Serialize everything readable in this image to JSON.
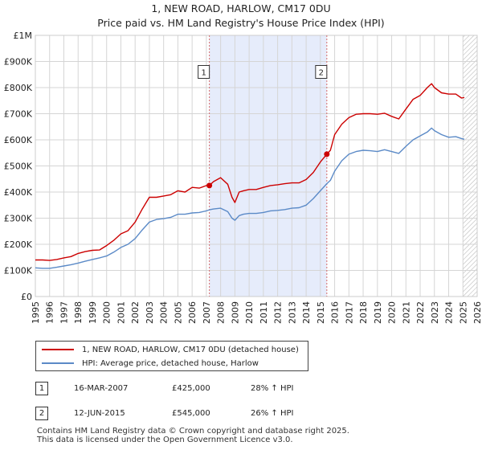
{
  "header": {
    "title_line1": "1, NEW ROAD, HARLOW, CM17 0DU",
    "title_line2": "Price paid vs. HM Land Registry's House Price Index (HPI)"
  },
  "colors": {
    "price_paid": "#cc0000",
    "hpi": "#5b8ac7",
    "shade": "#e6ecfb",
    "grid": "#d5d5d5",
    "marker_line": "#d46a6a"
  },
  "legend": {
    "items": [
      {
        "label": "1, NEW ROAD, HARLOW, CM17 0DU (detached house)",
        "color": "#cc0000"
      },
      {
        "label": "HPI: Average price, detached house, Harlow",
        "color": "#5b8ac7"
      }
    ]
  },
  "transactions": [
    {
      "id": "1",
      "date": "16-MAR-2007",
      "price": "£425,000",
      "hpi_change": "28% ↑ HPI"
    },
    {
      "id": "2",
      "date": "12-JUN-2015",
      "price": "£545,000",
      "hpi_change": "26% ↑ HPI"
    }
  ],
  "footer": {
    "line1": "Contains HM Land Registry data © Crown copyright and database right 2025.",
    "line2": "This data is licensed under the Open Government Licence v3.0."
  },
  "chart_data": {
    "type": "line",
    "title": "1, NEW ROAD, HARLOW, CM17 0DU",
    "subtitle": "Price paid vs. HM Land Registry's House Price Index (HPI)",
    "xlabel": "",
    "ylabel": "",
    "xlim": [
      1995,
      2026
    ],
    "ylim": [
      0,
      1000000
    ],
    "grid": true,
    "legend_position": "below",
    "x_ticks": [
      1995,
      1996,
      1997,
      1998,
      1999,
      2000,
      2001,
      2002,
      2003,
      2004,
      2005,
      2006,
      2007,
      2008,
      2009,
      2010,
      2011,
      2012,
      2013,
      2014,
      2015,
      2016,
      2017,
      2018,
      2019,
      2020,
      2021,
      2022,
      2023,
      2024,
      2025,
      2026
    ],
    "y_ticks": [
      {
        "value": 0,
        "label": "£0"
      },
      {
        "value": 100000,
        "label": "£100K"
      },
      {
        "value": 200000,
        "label": "£200K"
      },
      {
        "value": 300000,
        "label": "£300K"
      },
      {
        "value": 400000,
        "label": "£400K"
      },
      {
        "value": 500000,
        "label": "£500K"
      },
      {
        "value": 600000,
        "label": "£600K"
      },
      {
        "value": 700000,
        "label": "£700K"
      },
      {
        "value": 800000,
        "label": "£800K"
      },
      {
        "value": 900000,
        "label": "£900K"
      },
      {
        "value": 1000000,
        "label": "£1M"
      }
    ],
    "shaded_ranges": [
      {
        "from": 2007.21,
        "to": 2015.45,
        "kind": "ownership_period"
      },
      {
        "from": 2025.0,
        "to": 2026.0,
        "kind": "projection_hatched"
      }
    ],
    "markers": [
      {
        "id": "1",
        "x": 2007.21,
        "y": 425000,
        "label_y": 860000
      },
      {
        "id": "2",
        "x": 2015.45,
        "y": 545000,
        "label_y": 860000
      }
    ],
    "series": [
      {
        "name": "1, NEW ROAD, HARLOW, CM17 0DU (detached house)",
        "color": "#cc0000",
        "x": [
          1995.0,
          1995.5,
          1996.0,
          1996.5,
          1997.0,
          1997.5,
          1998.0,
          1998.5,
          1999.0,
          1999.5,
          2000.0,
          2000.5,
          2001.0,
          2001.5,
          2002.0,
          2002.5,
          2003.0,
          2003.5,
          2004.0,
          2004.5,
          2005.0,
          2005.5,
          2006.0,
          2006.5,
          2007.0,
          2007.21,
          2007.5,
          2008.0,
          2008.5,
          2008.8,
          2009.0,
          2009.3,
          2009.6,
          2010.0,
          2010.5,
          2011.0,
          2011.5,
          2012.0,
          2012.5,
          2013.0,
          2013.5,
          2014.0,
          2014.5,
          2015.0,
          2015.45,
          2015.7,
          2016.0,
          2016.5,
          2017.0,
          2017.5,
          2018.0,
          2018.5,
          2019.0,
          2019.5,
          2020.0,
          2020.5,
          2021.0,
          2021.5,
          2022.0,
          2022.5,
          2022.8,
          2023.0,
          2023.5,
          2024.0,
          2024.5,
          2024.9,
          2025.1
        ],
        "values": [
          140000,
          140000,
          138000,
          142000,
          148000,
          153000,
          165000,
          172000,
          177000,
          178000,
          195000,
          215000,
          240000,
          252000,
          285000,
          335000,
          380000,
          380000,
          385000,
          390000,
          405000,
          400000,
          418000,
          415000,
          425000,
          425000,
          440000,
          455000,
          430000,
          380000,
          360000,
          400000,
          405000,
          410000,
          410000,
          418000,
          425000,
          428000,
          432000,
          435000,
          435000,
          448000,
          475000,
          515000,
          545000,
          560000,
          620000,
          660000,
          685000,
          698000,
          700000,
          700000,
          698000,
          702000,
          690000,
          680000,
          718000,
          755000,
          770000,
          800000,
          815000,
          800000,
          780000,
          775000,
          775000,
          760000,
          762000
        ]
      },
      {
        "name": "HPI: Average price, detached house, Harlow",
        "color": "#5b8ac7",
        "x": [
          1995.0,
          1995.5,
          1996.0,
          1996.5,
          1997.0,
          1997.5,
          1998.0,
          1998.5,
          1999.0,
          1999.5,
          2000.0,
          2000.5,
          2001.0,
          2001.5,
          2002.0,
          2002.5,
          2003.0,
          2003.5,
          2004.0,
          2004.5,
          2005.0,
          2005.5,
          2006.0,
          2006.5,
          2007.0,
          2007.21,
          2007.5,
          2008.0,
          2008.5,
          2008.8,
          2009.0,
          2009.3,
          2009.6,
          2010.0,
          2010.5,
          2011.0,
          2011.5,
          2012.0,
          2012.5,
          2013.0,
          2013.5,
          2014.0,
          2014.5,
          2015.0,
          2015.45,
          2015.7,
          2016.0,
          2016.5,
          2017.0,
          2017.5,
          2018.0,
          2018.5,
          2019.0,
          2019.5,
          2020.0,
          2020.5,
          2021.0,
          2021.5,
          2022.0,
          2022.5,
          2022.8,
          2023.0,
          2023.5,
          2024.0,
          2024.5,
          2024.9,
          2025.1
        ],
        "values": [
          110000,
          108000,
          108000,
          112000,
          117000,
          122000,
          128000,
          135000,
          142000,
          148000,
          155000,
          170000,
          188000,
          200000,
          222000,
          255000,
          285000,
          295000,
          298000,
          303000,
          315000,
          315000,
          320000,
          322000,
          328000,
          332000,
          335000,
          338000,
          325000,
          300000,
          292000,
          310000,
          315000,
          318000,
          318000,
          322000,
          328000,
          330000,
          333000,
          338000,
          340000,
          350000,
          375000,
          405000,
          432000,
          445000,
          480000,
          520000,
          545000,
          555000,
          560000,
          558000,
          555000,
          562000,
          555000,
          548000,
          575000,
          600000,
          615000,
          630000,
          645000,
          635000,
          620000,
          610000,
          612000,
          605000,
          602000
        ]
      }
    ]
  }
}
